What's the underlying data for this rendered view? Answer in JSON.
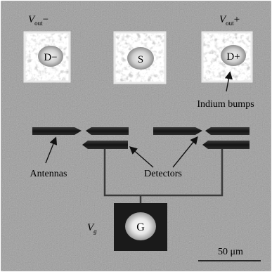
{
  "labels": {
    "vout_minus_main": "V",
    "vout_minus_sub": "out",
    "vout_minus_sign": "−",
    "vout_plus_main": "V",
    "vout_plus_sub": "out",
    "vout_plus_sign": "+",
    "pad_d_minus": "D−",
    "pad_s": "S",
    "pad_d_plus": "D+",
    "pad_g": "G",
    "vg_main": "V",
    "vg_sub": "g",
    "indium_bumps": "Indium bumps",
    "antennas": "Antennas",
    "detectors": "Detectors",
    "scale_bar": "50 μm"
  }
}
